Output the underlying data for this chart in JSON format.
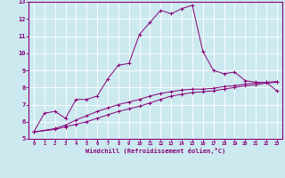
{
  "xlabel": "Windchill (Refroidissement éolien,°C)",
  "xlim": [
    -0.5,
    23.5
  ],
  "ylim": [
    5,
    13
  ],
  "xticks": [
    0,
    1,
    2,
    3,
    4,
    5,
    6,
    7,
    8,
    9,
    10,
    11,
    12,
    13,
    14,
    15,
    16,
    17,
    18,
    19,
    20,
    21,
    22,
    23
  ],
  "yticks": [
    5,
    6,
    7,
    8,
    9,
    10,
    11,
    12,
    13
  ],
  "bg_color": "#cce9f0",
  "line_color": "#880077",
  "line1_x": [
    0,
    1,
    2,
    3,
    4,
    5,
    6,
    7,
    8,
    9,
    10,
    11,
    12,
    13,
    14,
    15,
    16,
    17,
    18,
    19,
    20,
    21,
    22,
    23
  ],
  "line1_y": [
    5.4,
    6.5,
    6.6,
    6.2,
    7.3,
    7.3,
    7.5,
    8.5,
    9.3,
    9.4,
    11.1,
    11.8,
    12.5,
    12.3,
    12.6,
    12.8,
    10.1,
    9.0,
    8.8,
    8.9,
    8.4,
    8.3,
    8.3,
    7.8
  ],
  "line2_x": [
    0,
    2,
    3,
    4,
    5,
    6,
    7,
    8,
    9,
    10,
    11,
    12,
    13,
    14,
    15,
    16,
    17,
    18,
    19,
    20,
    21,
    22,
    23
  ],
  "line2_y": [
    5.4,
    5.55,
    5.7,
    5.85,
    6.0,
    6.2,
    6.4,
    6.6,
    6.75,
    6.9,
    7.1,
    7.3,
    7.5,
    7.6,
    7.7,
    7.75,
    7.8,
    7.9,
    8.0,
    8.1,
    8.15,
    8.25,
    8.3
  ],
  "line3_x": [
    0,
    2,
    3,
    4,
    5,
    6,
    7,
    8,
    9,
    10,
    11,
    12,
    13,
    14,
    15,
    16,
    17,
    18,
    19,
    20,
    21,
    22,
    23
  ],
  "line3_y": [
    5.4,
    5.6,
    5.8,
    6.1,
    6.35,
    6.6,
    6.8,
    7.0,
    7.15,
    7.3,
    7.5,
    7.65,
    7.75,
    7.85,
    7.9,
    7.9,
    7.95,
    8.05,
    8.1,
    8.2,
    8.25,
    8.3,
    8.35
  ]
}
